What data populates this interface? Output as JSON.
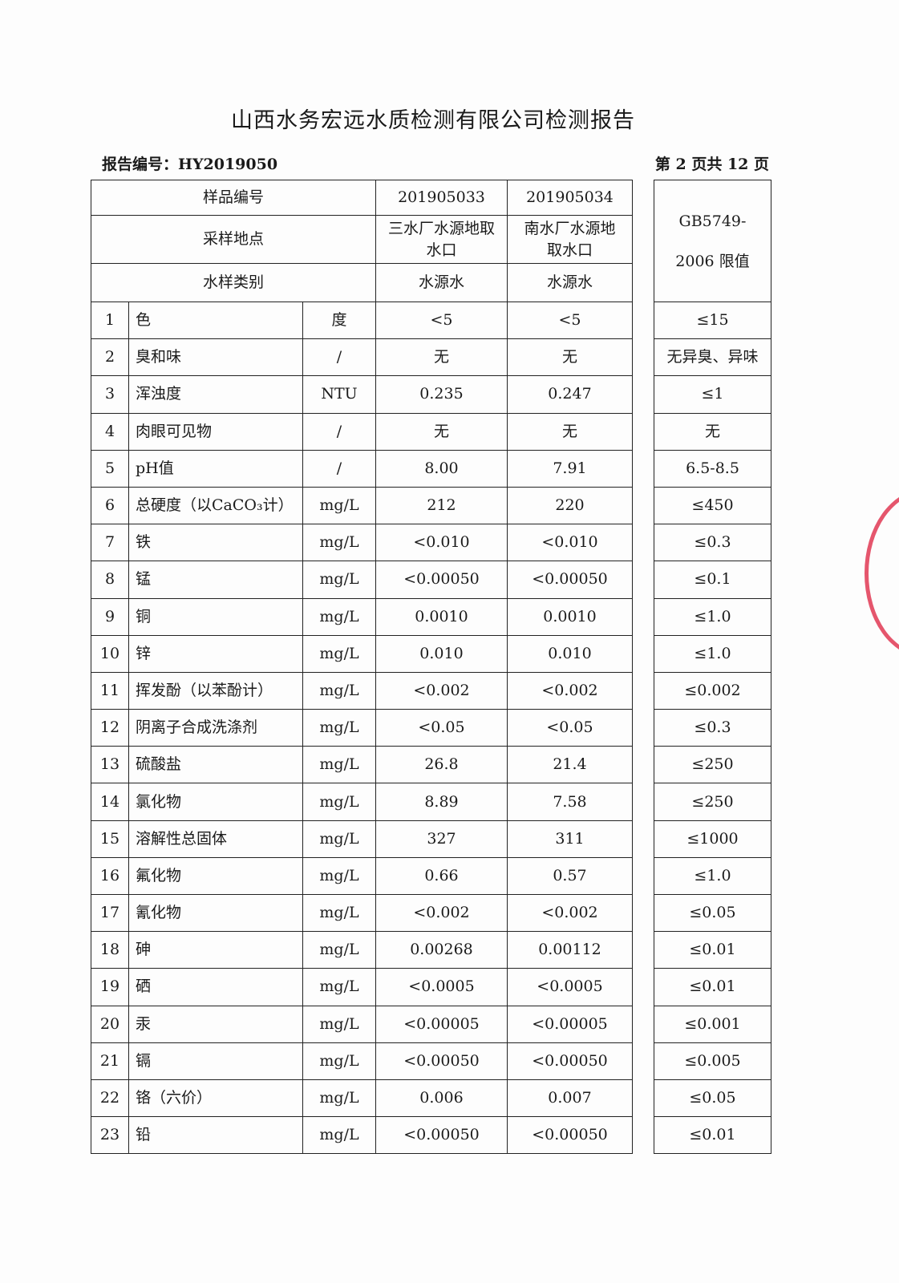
{
  "title": "山西水务宏远水质检测有限公司检测报告",
  "report_no": "报告编号：HY2019050",
  "page_no": "第 2 页共 12 页",
  "header": {
    "sample_id_label": "样品编号",
    "sample_ids": [
      "201905033",
      "201905034"
    ],
    "location_label": "采样地点",
    "locations": [
      "三水厂水源地取水口",
      "南水厂水源地取水口"
    ],
    "type_label": "水样类别",
    "types": [
      "水源水",
      "水源水"
    ],
    "limit_label": "GB5749-2006 限值"
  },
  "rows": [
    {
      "no": "1",
      "name": "色",
      "unit": "度",
      "v1": "<5",
      "v2": "<5",
      "limit": "≤15"
    },
    {
      "no": "2",
      "name": "臭和味",
      "unit": "/",
      "v1": "无",
      "v2": "无",
      "limit": "无异臭、异味"
    },
    {
      "no": "3",
      "name": "浑浊度",
      "unit": "NTU",
      "v1": "0.235",
      "v2": "0.247",
      "limit": "≤1"
    },
    {
      "no": "4",
      "name": "肉眼可见物",
      "unit": "/",
      "v1": "无",
      "v2": "无",
      "limit": "无"
    },
    {
      "no": "5",
      "name": "pH值",
      "unit": "/",
      "v1": "8.00",
      "v2": "7.91",
      "limit": "6.5-8.5"
    },
    {
      "no": "6",
      "name": "总硬度（以CaCO₃计）",
      "unit": "mg/L",
      "v1": "212",
      "v2": "220",
      "limit": "≤450"
    },
    {
      "no": "7",
      "name": "铁",
      "unit": "mg/L",
      "v1": "<0.010",
      "v2": "<0.010",
      "limit": "≤0.3"
    },
    {
      "no": "8",
      "name": "锰",
      "unit": "mg/L",
      "v1": "<0.00050",
      "v2": "<0.00050",
      "limit": "≤0.1"
    },
    {
      "no": "9",
      "name": "铜",
      "unit": "mg/L",
      "v1": "0.0010",
      "v2": "0.0010",
      "limit": "≤1.0"
    },
    {
      "no": "10",
      "name": "锌",
      "unit": "mg/L",
      "v1": "0.010",
      "v2": "0.010",
      "limit": "≤1.0"
    },
    {
      "no": "11",
      "name": "挥发酚（以苯酚计）",
      "unit": "mg/L",
      "v1": "<0.002",
      "v2": "<0.002",
      "limit": "≤0.002"
    },
    {
      "no": "12",
      "name": "阴离子合成洗涤剂",
      "unit": "mg/L",
      "v1": "<0.05",
      "v2": "<0.05",
      "limit": "≤0.3"
    },
    {
      "no": "13",
      "name": "硫酸盐",
      "unit": "mg/L",
      "v1": "26.8",
      "v2": "21.4",
      "limit": "≤250"
    },
    {
      "no": "14",
      "name": "氯化物",
      "unit": "mg/L",
      "v1": "8.89",
      "v2": "7.58",
      "limit": "≤250"
    },
    {
      "no": "15",
      "name": "溶解性总固体",
      "unit": "mg/L",
      "v1": "327",
      "v2": "311",
      "limit": "≤1000"
    },
    {
      "no": "16",
      "name": "氟化物",
      "unit": "mg/L",
      "v1": "0.66",
      "v2": "0.57",
      "limit": "≤1.0"
    },
    {
      "no": "17",
      "name": "氰化物",
      "unit": "mg/L",
      "v1": "<0.002",
      "v2": "<0.002",
      "limit": "≤0.05"
    },
    {
      "no": "18",
      "name": "砷",
      "unit": "mg/L",
      "v1": "0.00268",
      "v2": "0.00112",
      "limit": "≤0.01"
    },
    {
      "no": "19",
      "name": "硒",
      "unit": "mg/L",
      "v1": "<0.0005",
      "v2": "<0.0005",
      "limit": "≤0.01"
    },
    {
      "no": "20",
      "name": "汞",
      "unit": "mg/L",
      "v1": "<0.00005",
      "v2": "<0.00005",
      "limit": "≤0.001"
    },
    {
      "no": "21",
      "name": "镉",
      "unit": "mg/L",
      "v1": "<0.00050",
      "v2": "<0.00050",
      "limit": "≤0.005"
    },
    {
      "no": "22",
      "name": "铬（六价）",
      "unit": "mg/L",
      "v1": "0.006",
      "v2": "0.007",
      "limit": "≤0.05"
    },
    {
      "no": "23",
      "name": "铅",
      "unit": "mg/L",
      "v1": "<0.00050",
      "v2": "<0.00050",
      "limit": "≤0.01"
    }
  ],
  "colors": {
    "stamp": "#dc1e3c"
  }
}
